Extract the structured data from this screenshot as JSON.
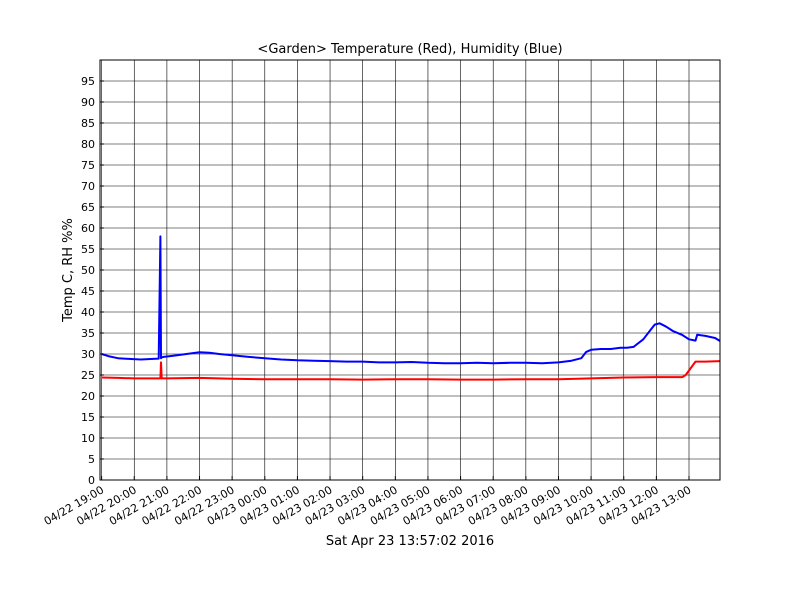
{
  "chart_data": {
    "type": "line",
    "title": "<Garden> Temperature (Red), Humidity (Blue)",
    "xlabel": "Sat Apr 23 13:57:02 2016",
    "ylabel": "Temp C, RH %%",
    "ylim": [
      0,
      100
    ],
    "xlim": [
      -0.05,
      18.95
    ],
    "grid": true,
    "y_ticks": [
      0,
      5,
      10,
      15,
      20,
      25,
      30,
      35,
      40,
      45,
      50,
      55,
      60,
      65,
      70,
      75,
      80,
      85,
      90,
      95
    ],
    "x_tick_labels": [
      "04/22 19:00",
      "04/22 20:00",
      "04/22 21:00",
      "04/22 22:00",
      "04/22 23:00",
      "04/23 00:00",
      "04/23 01:00",
      "04/23 02:00",
      "04/23 03:00",
      "04/23 04:00",
      "04/23 05:00",
      "04/23 06:00",
      "04/23 07:00",
      "04/23 08:00",
      "04/23 09:00",
      "04/23 10:00",
      "04/23 11:00",
      "04/23 12:00",
      "04/23 13:00"
    ],
    "x_tick_hours": [
      0,
      1,
      2,
      3,
      4,
      5,
      6,
      7,
      8,
      9,
      10,
      11,
      12,
      13,
      14,
      15,
      16,
      17,
      18
    ],
    "series": [
      {
        "color": "#0000ff",
        "x": [
          0,
          0.2,
          0.5,
          0.9,
          1.2,
          1.5,
          1.75,
          1.8,
          1.82,
          1.84,
          1.9,
          2.2,
          2.6,
          3.0,
          3.3,
          3.6,
          4.0,
          4.5,
          5.0,
          5.5,
          6.0,
          6.5,
          7.0,
          7.5,
          8.0,
          8.5,
          9.0,
          9.5,
          10.0,
          10.5,
          11.0,
          11.5,
          12.0,
          12.5,
          13.0,
          13.5,
          14.0,
          14.4,
          14.7,
          14.85,
          15.0,
          15.3,
          15.6,
          15.9,
          16.1,
          16.3,
          16.6,
          16.8,
          16.95,
          17.1,
          17.3,
          17.5,
          17.8,
          18.0,
          18.2,
          18.25,
          18.5,
          18.8,
          18.95
        ],
        "y": [
          30.0,
          29.5,
          29.0,
          28.8,
          28.7,
          28.8,
          28.9,
          58.0,
          29.0,
          29.2,
          29.3,
          29.6,
          30.0,
          30.4,
          30.3,
          30.0,
          29.7,
          29.3,
          29.0,
          28.7,
          28.5,
          28.4,
          28.3,
          28.2,
          28.2,
          28.0,
          28.0,
          28.1,
          27.9,
          27.8,
          27.8,
          27.9,
          27.8,
          27.9,
          27.9,
          27.8,
          28.0,
          28.4,
          29.0,
          30.5,
          31.0,
          31.2,
          31.2,
          31.5,
          31.5,
          31.7,
          33.5,
          35.5,
          37.0,
          37.3,
          36.5,
          35.5,
          34.5,
          33.5,
          33.2,
          34.6,
          34.3,
          33.8,
          33.1
        ]
      },
      {
        "color": "#ff0000",
        "x": [
          0,
          0.5,
          1.0,
          1.5,
          1.8,
          1.82,
          1.84,
          1.86,
          2.0,
          3.0,
          4.0,
          5.0,
          6.0,
          7.0,
          8.0,
          9.0,
          10.0,
          11.0,
          12.0,
          13.0,
          14.0,
          15.0,
          16.0,
          17.0,
          17.8,
          17.9,
          18.2,
          18.5,
          18.95
        ],
        "y": [
          24.4,
          24.3,
          24.2,
          24.2,
          24.2,
          28.0,
          24.2,
          24.2,
          24.2,
          24.3,
          24.1,
          24.0,
          24.0,
          24.0,
          23.9,
          24.0,
          24.0,
          23.9,
          23.9,
          24.0,
          24.0,
          24.2,
          24.4,
          24.5,
          24.5,
          25.0,
          28.2,
          28.2,
          28.3
        ]
      }
    ]
  }
}
